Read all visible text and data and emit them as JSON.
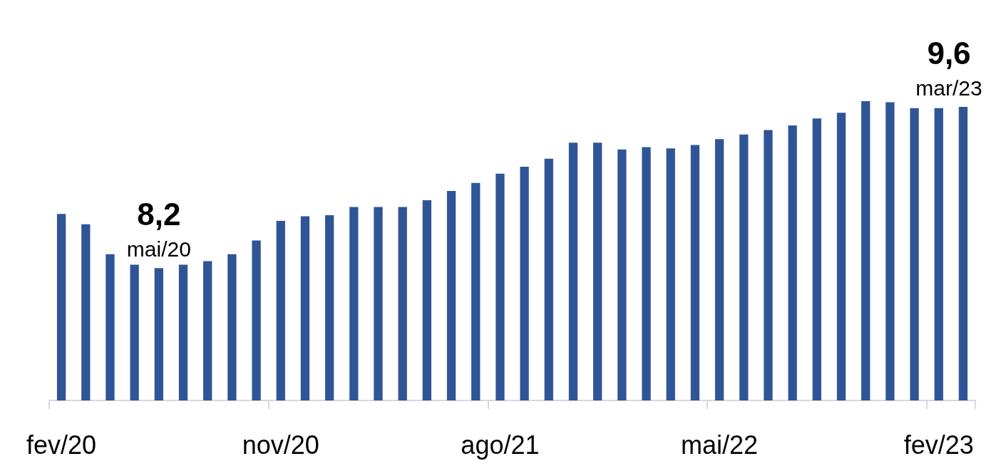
{
  "chart_data": {
    "type": "bar",
    "ylim": [
      7.05,
      9.65
    ],
    "color": "#2f5597",
    "categories": [
      "fev/20",
      null,
      null,
      null,
      null,
      null,
      null,
      null,
      null,
      "nov/20",
      null,
      null,
      null,
      null,
      null,
      null,
      null,
      null,
      "ago/21",
      null,
      null,
      null,
      null,
      null,
      null,
      null,
      null,
      "mai/22",
      null,
      null,
      null,
      null,
      null,
      null,
      null,
      null,
      "fev/23",
      null
    ],
    "values": [
      8.67,
      8.58,
      8.32,
      8.23,
      8.2,
      8.23,
      8.26,
      8.32,
      8.44,
      8.61,
      8.65,
      8.66,
      8.73,
      8.73,
      8.73,
      8.79,
      8.87,
      8.94,
      9.02,
      9.08,
      9.15,
      9.29,
      9.29,
      9.23,
      9.25,
      9.24,
      9.27,
      9.32,
      9.36,
      9.4,
      9.44,
      9.5,
      9.55,
      9.65,
      9.64,
      9.59,
      9.59,
      9.6
    ],
    "value_labels": [
      null,
      null,
      null,
      null,
      "8,2",
      null,
      null,
      null,
      null,
      null,
      null,
      null,
      null,
      null,
      null,
      null,
      null,
      null,
      null,
      null,
      null,
      null,
      null,
      null,
      null,
      null,
      null,
      null,
      null,
      null,
      null,
      null,
      null,
      null,
      null,
      null,
      null,
      "9,6"
    ],
    "annotations": [
      "mai/20",
      "mar/23"
    ],
    "grid": false,
    "tick_labels": "x"
  }
}
